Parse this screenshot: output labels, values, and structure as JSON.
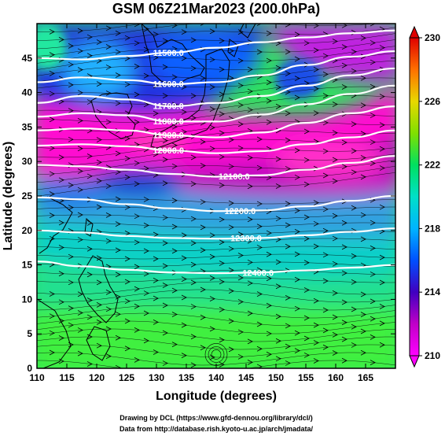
{
  "title": "GSM 06Z21Mar2023 (200.0hPa)",
  "x_axis": {
    "label": "Longitude (degrees)",
    "range": [
      110,
      170
    ],
    "ticks": [
      "110",
      "115",
      "120",
      "125",
      "130",
      "135",
      "140",
      "145",
      "150",
      "155",
      "160",
      "165"
    ]
  },
  "y_axis": {
    "label": "Latitude (degrees)",
    "range": [
      0,
      50
    ],
    "ticks": [
      "0",
      "5",
      "10",
      "15",
      "20",
      "25",
      "30",
      "35",
      "40",
      "45"
    ]
  },
  "colorbar": {
    "range": [
      210,
      230
    ],
    "ticks": [
      "210",
      "214",
      "218",
      "222",
      "226",
      "230"
    ]
  },
  "contours": [
    {
      "level": "11500.0",
      "lats": [
        45,
        44.8,
        45.3,
        45.8,
        46.5,
        47.3,
        48,
        48.6,
        49
      ]
    },
    {
      "level": "11600.0",
      "lats": [
        41.5,
        42.2,
        41.8,
        41.2,
        41.5,
        42.5,
        44,
        45.2,
        46
      ]
    },
    {
      "level": "11700.0",
      "lats": [
        38.5,
        39.5,
        39,
        38,
        38.5,
        39.5,
        41,
        42.5,
        43.5
      ]
    },
    {
      "level": "11800.0",
      "lats": [
        36.5,
        37,
        36.7,
        35.8,
        35.8,
        36.8,
        38.3,
        39.8,
        41
      ]
    },
    {
      "level": "11900.0",
      "lats": [
        34.5,
        34.8,
        34.5,
        33.8,
        33.5,
        34.2,
        35.6,
        37,
        38
      ]
    },
    {
      "level": "12000.0",
      "lats": [
        32.3,
        32.5,
        32.2,
        31.6,
        31.2,
        31.5,
        32.5,
        33.5,
        34.5
      ]
    },
    {
      "level": "12100.0",
      "lats": [
        29.5,
        29.3,
        28.8,
        28.2,
        27.8,
        28,
        28.8,
        29.8,
        30.8
      ]
    },
    {
      "level": "12200.0",
      "lats": [
        24.8,
        24.5,
        23.8,
        23.2,
        22.8,
        22.9,
        23.5,
        24.3,
        25
      ]
    },
    {
      "level": "12300.0",
      "lats": [
        20,
        19.7,
        19.2,
        18.9,
        18.8,
        18.9,
        19.3,
        19.8,
        20.3
      ]
    },
    {
      "level": "12400.0",
      "lats": [
        15.5,
        14.8,
        14.3,
        13.9,
        13.8,
        13.9,
        14.2,
        14.6,
        15
      ]
    }
  ],
  "credits": [
    "Drawing by DCL (https://www.gfd-dennou.org/library/dcl/)",
    "Data from http://database.rish.kyoto-u.ac.jp/arch/jmadata/"
  ]
}
